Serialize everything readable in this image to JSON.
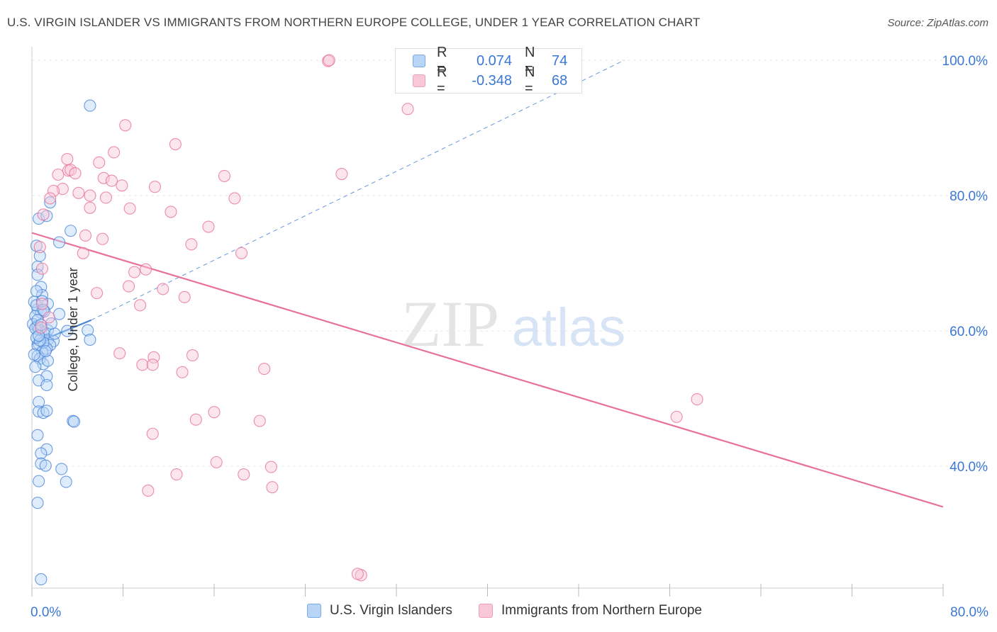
{
  "title": "U.S. VIRGIN ISLANDER VS IMMIGRANTS FROM NORTHERN EUROPE COLLEGE, UNDER 1 YEAR CORRELATION CHART",
  "source": "Source: ZipAtlas.com",
  "watermark": {
    "zip": "ZIP",
    "atlas": "atlas"
  },
  "legend_top": {
    "rows": [
      {
        "r_label": "R =",
        "r_value": "0.074",
        "n_label": "N =",
        "n_value": "74",
        "fill": "#b8d4f6",
        "stroke": "#7aaae8"
      },
      {
        "r_label": "R =",
        "r_value": "-0.348",
        "n_label": "N =",
        "n_value": "68",
        "fill": "#f8c8d8",
        "stroke": "#eea0b8"
      }
    ]
  },
  "colors": {
    "blue": "#4a86d8",
    "blue_fill": "#b8d4f6",
    "pink": "#e8709a",
    "pink_fill": "#f8c8d8",
    "axis_label": "#3a78d4",
    "grid": "#e6e6e6"
  },
  "chart_data": {
    "type": "scatter",
    "ylabel": "College, Under 1 year",
    "xlim": [
      0,
      80
    ],
    "ylim": [
      22,
      102
    ],
    "x_tick_labels": [
      {
        "value": 0,
        "label": "0.0%"
      },
      {
        "value": 80,
        "label": "80.0%"
      }
    ],
    "y_tick_labels": [
      {
        "value": 40,
        "label": "40.0%"
      },
      {
        "value": 60,
        "label": "60.0%"
      },
      {
        "value": 80,
        "label": "80.0%"
      },
      {
        "value": 100,
        "label": "100.0%"
      }
    ],
    "grid": "horizontal dashed",
    "legend_placement": "bottom-center",
    "series": [
      {
        "name": "U.S. Virgin Islanders",
        "color": "#4a86d8",
        "points": [
          [
            5.1,
            93.3
          ],
          [
            0.6,
            76.6
          ],
          [
            3.4,
            74.8
          ],
          [
            1.6,
            79.0
          ],
          [
            1.3,
            77.0
          ],
          [
            2.4,
            73.1
          ],
          [
            0.4,
            72.6
          ],
          [
            0.7,
            71.1
          ],
          [
            0.5,
            69.5
          ],
          [
            0.5,
            68.3
          ],
          [
            0.8,
            66.5
          ],
          [
            0.9,
            65.3
          ],
          [
            1.4,
            64.0
          ],
          [
            0.5,
            63.2
          ],
          [
            0.8,
            62.7
          ],
          [
            0.2,
            64.3
          ],
          [
            0.3,
            62.2
          ],
          [
            1.1,
            62.9
          ],
          [
            2.4,
            62.5
          ],
          [
            0.1,
            61.0
          ],
          [
            0.5,
            60.7
          ],
          [
            0.6,
            60.2
          ],
          [
            1.0,
            59.8
          ],
          [
            1.2,
            59.4
          ],
          [
            1.4,
            60.1
          ],
          [
            1.4,
            58.7
          ],
          [
            0.6,
            58.1
          ],
          [
            1.9,
            58.5
          ],
          [
            0.5,
            57.9
          ],
          [
            1.6,
            57.9
          ],
          [
            1.3,
            57.4
          ],
          [
            0.9,
            56.9
          ],
          [
            0.5,
            56.3
          ],
          [
            0.7,
            55.9
          ],
          [
            1.0,
            55.1
          ],
          [
            1.4,
            55.6
          ],
          [
            0.3,
            54.7
          ],
          [
            1.3,
            53.3
          ],
          [
            0.6,
            52.7
          ],
          [
            1.3,
            52.0
          ],
          [
            0.6,
            49.5
          ],
          [
            0.6,
            48.1
          ],
          [
            1.0,
            47.9
          ],
          [
            1.3,
            48.2
          ],
          [
            3.6,
            46.7
          ],
          [
            3.7,
            46.6
          ],
          [
            0.5,
            44.6
          ],
          [
            1.3,
            42.5
          ],
          [
            0.8,
            41.9
          ],
          [
            0.8,
            40.4
          ],
          [
            1.2,
            40.1
          ],
          [
            2.6,
            39.6
          ],
          [
            0.6,
            37.8
          ],
          [
            3.0,
            37.7
          ],
          [
            0.5,
            34.6
          ],
          [
            0.8,
            23.3
          ],
          [
            4.9,
            60.1
          ],
          [
            5.1,
            58.7
          ],
          [
            3.1,
            60.0
          ],
          [
            1.0,
            58.3
          ],
          [
            0.3,
            60.4
          ],
          [
            2.0,
            59.6
          ],
          [
            0.4,
            59.0
          ],
          [
            0.7,
            58.6
          ],
          [
            0.2,
            56.5
          ],
          [
            0.4,
            63.8
          ],
          [
            0.9,
            64.4
          ],
          [
            1.7,
            61.1
          ],
          [
            0.5,
            61.6
          ],
          [
            0.8,
            60.9
          ],
          [
            1.0,
            63.1
          ],
          [
            0.4,
            65.9
          ],
          [
            1.2,
            57.0
          ],
          [
            0.6,
            59.3
          ]
        ]
      },
      {
        "name": "Immigrants from Northern Europe",
        "color": "#e8709a",
        "points": [
          [
            26.0,
            99.9
          ],
          [
            26.1,
            100.0
          ],
          [
            33.0,
            92.8
          ],
          [
            8.2,
            90.4
          ],
          [
            7.2,
            86.4
          ],
          [
            12.6,
            87.6
          ],
          [
            3.1,
            85.4
          ],
          [
            3.2,
            83.7
          ],
          [
            3.4,
            83.8
          ],
          [
            3.8,
            83.3
          ],
          [
            2.3,
            83.1
          ],
          [
            5.9,
            84.9
          ],
          [
            6.3,
            82.6
          ],
          [
            7.0,
            82.2
          ],
          [
            16.9,
            82.9
          ],
          [
            27.2,
            83.2
          ],
          [
            7.9,
            81.5
          ],
          [
            10.8,
            81.3
          ],
          [
            2.7,
            81.0
          ],
          [
            1.9,
            80.7
          ],
          [
            4.1,
            80.4
          ],
          [
            5.1,
            80.0
          ],
          [
            6.5,
            79.7
          ],
          [
            17.8,
            79.6
          ],
          [
            1.6,
            79.6
          ],
          [
            5.1,
            78.2
          ],
          [
            8.6,
            78.1
          ],
          [
            12.2,
            77.6
          ],
          [
            1.0,
            77.2
          ],
          [
            15.5,
            75.4
          ],
          [
            4.7,
            74.1
          ],
          [
            6.2,
            73.6
          ],
          [
            14.0,
            72.8
          ],
          [
            0.7,
            72.4
          ],
          [
            4.5,
            71.5
          ],
          [
            18.4,
            71.5
          ],
          [
            0.9,
            69.2
          ],
          [
            10.0,
            69.1
          ],
          [
            9.0,
            68.7
          ],
          [
            8.5,
            66.6
          ],
          [
            5.7,
            65.6
          ],
          [
            11.5,
            66.2
          ],
          [
            13.4,
            65.0
          ],
          [
            9.5,
            63.8
          ],
          [
            0.8,
            60.5
          ],
          [
            7.7,
            56.7
          ],
          [
            10.7,
            56.1
          ],
          [
            14.1,
            56.4
          ],
          [
            9.7,
            55.0
          ],
          [
            10.6,
            55.0
          ],
          [
            13.2,
            53.9
          ],
          [
            20.4,
            54.4
          ],
          [
            58.4,
            49.9
          ],
          [
            16.0,
            48.0
          ],
          [
            14.4,
            46.9
          ],
          [
            20.0,
            46.7
          ],
          [
            56.6,
            47.3
          ],
          [
            10.6,
            44.8
          ],
          [
            16.2,
            40.6
          ],
          [
            21.0,
            39.9
          ],
          [
            12.7,
            38.8
          ],
          [
            18.6,
            38.8
          ],
          [
            21.1,
            36.9
          ],
          [
            10.2,
            36.4
          ],
          [
            28.9,
            23.9
          ],
          [
            28.6,
            24.1
          ],
          [
            0.9,
            64.0
          ],
          [
            1.5,
            62.0
          ]
        ]
      }
    ],
    "trendlines": [
      {
        "series": "U.S. Virgin Islanders",
        "solid": [
          [
            0,
            58.0
          ],
          [
            5.2,
            61.6
          ]
        ],
        "dashed_to": [
          52,
          100
        ]
      },
      {
        "series": "Immigrants from Northern Europe",
        "solid": [
          [
            0,
            74.5
          ],
          [
            80,
            34.0
          ]
        ]
      }
    ]
  }
}
